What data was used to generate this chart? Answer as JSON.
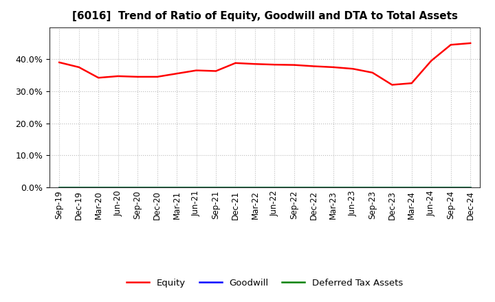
{
  "title": "[6016]  Trend of Ratio of Equity, Goodwill and DTA to Total Assets",
  "title_fontsize": 11,
  "equity_values": [
    39.0,
    37.5,
    34.2,
    34.7,
    34.5,
    34.5,
    35.5,
    36.5,
    36.3,
    38.8,
    38.5,
    38.3,
    38.2,
    37.8,
    37.5,
    37.0,
    35.8,
    32.0,
    32.5,
    39.5,
    44.5,
    45.0
  ],
  "goodwill_values": [
    0.0,
    0.0,
    0.0,
    0.0,
    0.0,
    0.0,
    0.0,
    0.0,
    0.0,
    0.0,
    0.0,
    0.0,
    0.0,
    0.0,
    0.0,
    0.0,
    0.0,
    0.0,
    0.0,
    0.0,
    0.0,
    0.0
  ],
  "dta_values": [
    0.0,
    0.0,
    0.0,
    0.0,
    0.0,
    0.0,
    0.0,
    0.0,
    0.0,
    0.0,
    0.0,
    0.0,
    0.0,
    0.0,
    0.0,
    0.0,
    0.0,
    0.0,
    0.0,
    0.0,
    0.0,
    0.0
  ],
  "x_labels": [
    "Sep-19",
    "Dec-19",
    "Mar-20",
    "Jun-20",
    "Sep-20",
    "Dec-20",
    "Mar-21",
    "Jun-21",
    "Sep-21",
    "Dec-21",
    "Mar-22",
    "Jun-22",
    "Sep-22",
    "Dec-22",
    "Mar-23",
    "Jun-23",
    "Sep-23",
    "Dec-23",
    "Mar-24",
    "Jun-24",
    "Sep-24",
    "Dec-24"
  ],
  "equity_color": "#ff0000",
  "goodwill_color": "#0000ff",
  "dta_color": "#008000",
  "ylim": [
    0.0,
    50.0
  ],
  "yticks": [
    0.0,
    10.0,
    20.0,
    30.0,
    40.0
  ],
  "background_color": "#ffffff",
  "plot_bg_color": "#ffffff",
  "grid_color": "#bbbbbb",
  "legend_labels": [
    "Equity",
    "Goodwill",
    "Deferred Tax Assets"
  ],
  "line_width": 1.8,
  "tick_fontsize": 8.5,
  "ytick_fontsize": 9
}
